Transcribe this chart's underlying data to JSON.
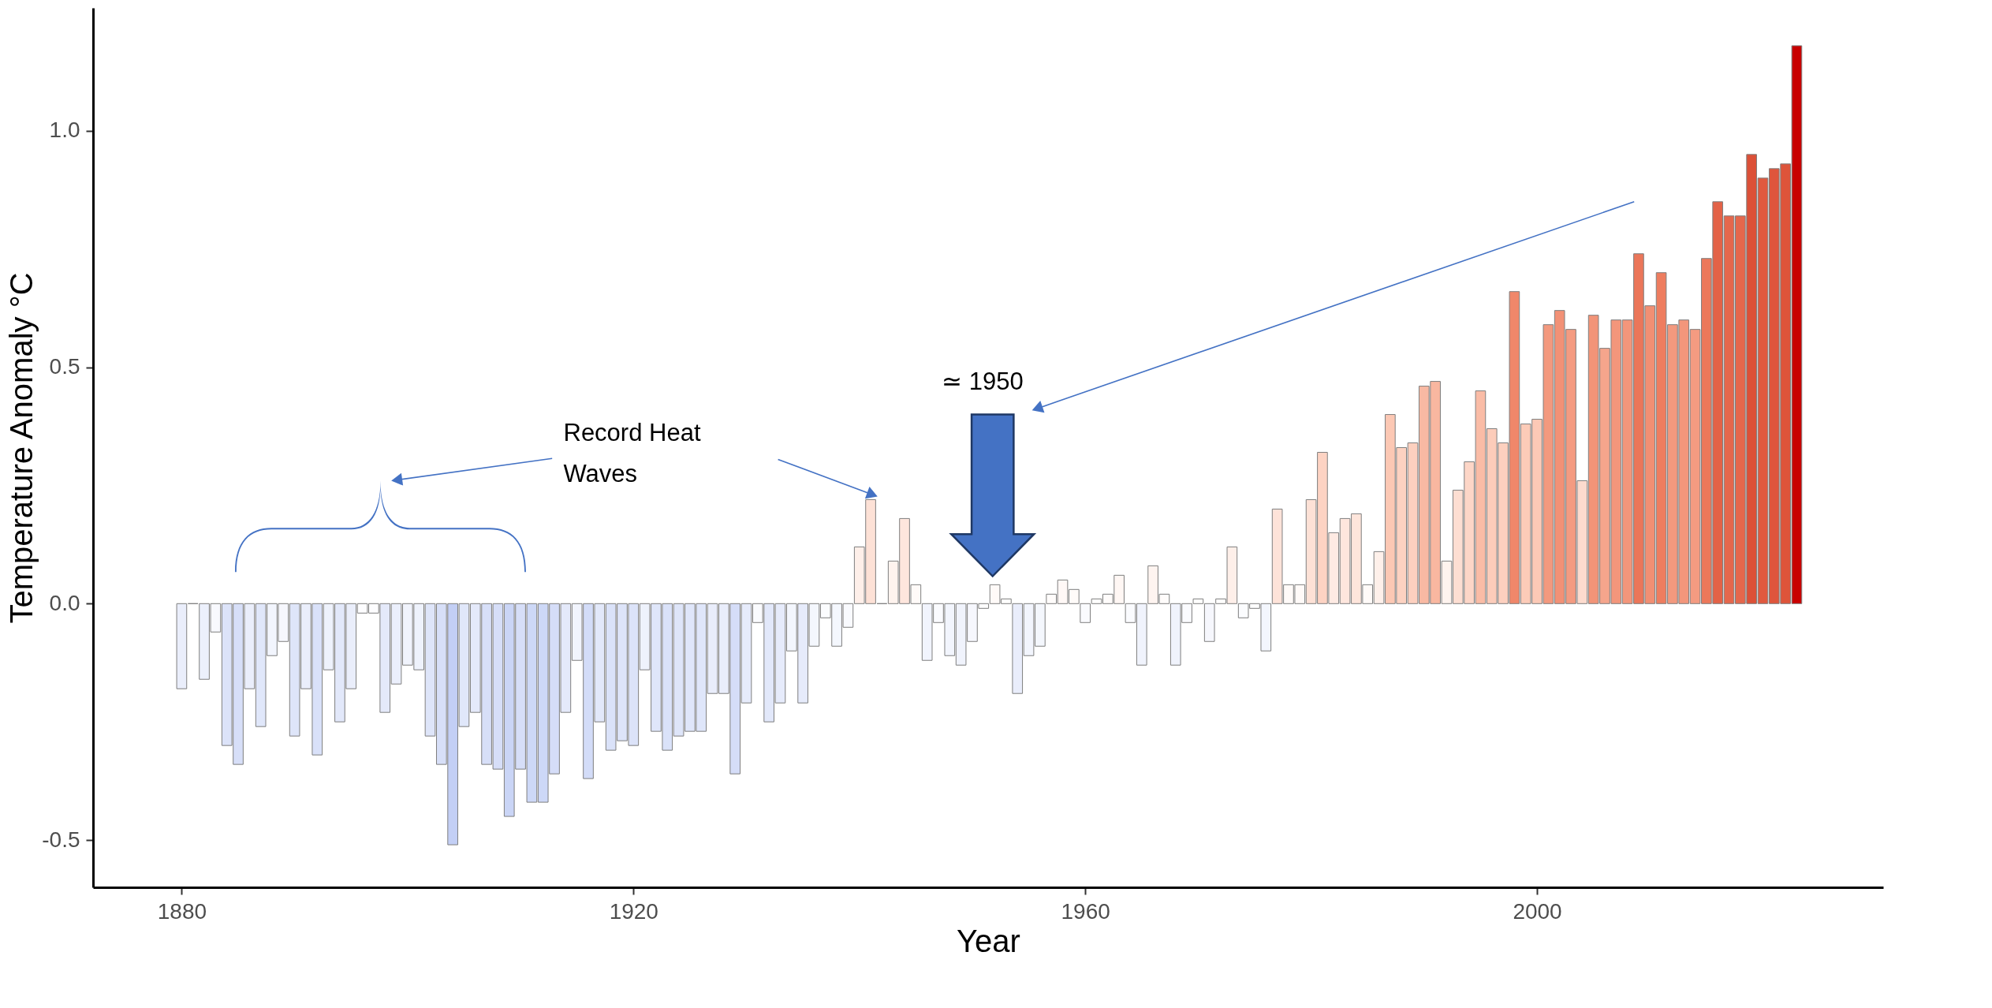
{
  "chart_data": {
    "type": "bar",
    "xlabel": "Year",
    "ylabel": "Temperature Anomaly °C",
    "x": [
      1880,
      1881,
      1882,
      1883,
      1884,
      1885,
      1886,
      1887,
      1888,
      1889,
      1890,
      1891,
      1892,
      1893,
      1894,
      1895,
      1896,
      1897,
      1898,
      1899,
      1900,
      1901,
      1902,
      1903,
      1904,
      1905,
      1906,
      1907,
      1908,
      1909,
      1910,
      1911,
      1912,
      1913,
      1914,
      1915,
      1916,
      1917,
      1918,
      1919,
      1920,
      1921,
      1922,
      1923,
      1924,
      1925,
      1926,
      1927,
      1928,
      1929,
      1930,
      1931,
      1932,
      1933,
      1934,
      1935,
      1936,
      1937,
      1938,
      1939,
      1940,
      1941,
      1942,
      1943,
      1944,
      1945,
      1946,
      1947,
      1948,
      1949,
      1950,
      1951,
      1952,
      1953,
      1954,
      1955,
      1956,
      1957,
      1958,
      1959,
      1960,
      1961,
      1962,
      1963,
      1964,
      1965,
      1966,
      1967,
      1968,
      1969,
      1970,
      1971,
      1972,
      1973,
      1974,
      1975,
      1976,
      1977,
      1978,
      1979,
      1980,
      1981,
      1982,
      1983,
      1984,
      1985,
      1986,
      1987,
      1988,
      1989,
      1990,
      1991,
      1992,
      1993,
      1994,
      1995,
      1996,
      1997,
      1998,
      1999,
      2000,
      2001,
      2002,
      2003,
      2004,
      2005,
      2006,
      2007,
      2008,
      2009,
      2010,
      2011,
      2012,
      2013,
      2014,
      2015,
      2016,
      2017,
      2018,
      2019,
      2020,
      2021,
      2022,
      2023
    ],
    "values": [
      -0.18,
      0,
      -0.16,
      -0.06,
      -0.3,
      -0.34,
      -0.18,
      -0.26,
      -0.11,
      -0.08,
      -0.28,
      -0.18,
      -0.32,
      -0.14,
      -0.25,
      -0.18,
      -0.02,
      -0.02,
      -0.23,
      -0.17,
      -0.13,
      -0.14,
      -0.28,
      -0.34,
      -0.51,
      -0.26,
      -0.23,
      -0.34,
      -0.35,
      -0.45,
      -0.35,
      -0.42,
      -0.42,
      -0.36,
      -0.23,
      -0.12,
      -0.37,
      -0.25,
      -0.31,
      -0.29,
      -0.3,
      -0.14,
      -0.27,
      -0.31,
      -0.28,
      -0.27,
      -0.27,
      -0.19,
      -0.19,
      -0.36,
      -0.21,
      -0.04,
      -0.25,
      -0.21,
      -0.1,
      -0.21,
      -0.09,
      -0.03,
      -0.09,
      -0.05,
      0.12,
      0.22,
      0,
      0.09,
      0.18,
      0.04,
      -0.12,
      -0.04,
      -0.11,
      -0.13,
      -0.08,
      -0.01,
      0.04,
      0.01,
      -0.19,
      -0.11,
      -0.09,
      0.02,
      0.05,
      0.03,
      -0.04,
      0.01,
      0.02,
      0.06,
      -0.04,
      -0.13,
      0.08,
      0.02,
      -0.13,
      -0.04,
      0.01,
      -0.08,
      0.01,
      0.12,
      -0.03,
      -0.01,
      -0.1,
      0.2,
      0.04,
      0.04,
      0.22,
      0.32,
      0.15,
      0.18,
      0.19,
      0.04,
      0.11,
      0.4,
      0.33,
      0.34,
      0.46,
      0.47,
      0.09,
      0.24,
      0.3,
      0.45,
      0.37,
      0.34,
      0.66,
      0.38,
      0.39,
      0.59,
      0.62,
      0.58,
      0.26,
      0.61,
      0.54,
      0.6,
      0.6,
      0.74,
      0.63,
      0.7,
      0.59,
      0.6,
      0.58,
      0.73,
      0.85,
      0.82,
      0.82,
      0.95,
      0.9,
      0.92,
      0.93,
      1.18
    ],
    "colors": [
      "#eaeefb",
      "#7f7f7f",
      "#ecf0fc",
      "#f8f9fe",
      "#dce3f9",
      "#d7dff8",
      "#eaeefb",
      "#e0e7fa",
      "#f2f5fd",
      "#f6f7fd",
      "#dee5f9",
      "#eaeefb",
      "#d9e1f9",
      "#eef2fc",
      "#e2e8fa",
      "#eaeefb",
      "#fdfdff",
      "#fdfdff",
      "#e4e9fa",
      "#ebeffc",
      "#f0f3fc",
      "#eef2fc",
      "#dee5f9",
      "#d7dff8",
      "#c3cff5",
      "#e0e7fa",
      "#e4e9fa",
      "#d7dff8",
      "#d6def8",
      "#cad5f6",
      "#d6def8",
      "#cdd8f7",
      "#cdd8f7",
      "#d5ddf8",
      "#e4e9fa",
      "#f1f4fd",
      "#d3dcf8",
      "#e2e8fa",
      "#dae2f9",
      "#dde4f9",
      "#dce3f9",
      "#eef2fc",
      "#dfe6fa",
      "#dae2f9",
      "#dee5f9",
      "#dfe6fa",
      "#dfe6fa",
      "#e9edfb",
      "#e9edfb",
      "#d5ddf8",
      "#e6ebfb",
      "#fafbfe",
      "#e2e8fa",
      "#e6ebfb",
      "#f3f6fd",
      "#e6ebfb",
      "#f4f7fd",
      "#fbfcfe",
      "#f4f7fd",
      "#f9fafe",
      "#feefe9",
      "#fde1d6",
      "#7f7f7f",
      "#fef3ee",
      "#fee6dd",
      "#fffaf8",
      "#f1f4fd",
      "#fafbfe",
      "#f2f5fd",
      "#f0f3fc",
      "#f6f7fd",
      "#fefeff",
      "#fffaf8",
      "#fffefd",
      "#e9edfb",
      "#f2f5fd",
      "#f4f7fd",
      "#fffcfb",
      "#fff8f6",
      "#fffbf9",
      "#fafbfe",
      "#fffefd",
      "#fffcfb",
      "#fff7f4",
      "#fafbfe",
      "#f0f3fc",
      "#fef4f0",
      "#fffcfb",
      "#f0f3fc",
      "#fafbfe",
      "#fffefd",
      "#f6f7fd",
      "#fffefd",
      "#feefe9",
      "#fbfcfe",
      "#fefeff",
      "#f3f6fd",
      "#fee3d9",
      "#fffaf8",
      "#fffaf8",
      "#fde1d6",
      "#fdd3c3",
      "#feeae3",
      "#fee6dd",
      "#fee5db",
      "#fffaf8",
      "#fef0ea",
      "#fcc8b4",
      "#fdd2c1",
      "#fdd0bf",
      "#f9b9a3",
      "#f9b7a0",
      "#fef3ee",
      "#fdded2",
      "#fdd6c7",
      "#fabca6",
      "#fcccba",
      "#fdd0bf",
      "#f0876a",
      "#fccbb8",
      "#fcc9b6",
      "#f3997e",
      "#f29176",
      "#f49b81",
      "#fddbce",
      "#f29478",
      "#f5a58c",
      "#f3967b",
      "#f3967b",
      "#eb7659",
      "#f18f73",
      "#ee7d5f",
      "#f3997e",
      "#f3967b",
      "#f49b81",
      "#ec785a",
      "#e36247",
      "#e5674c",
      "#e5674c",
      "#dc5037",
      "#e0593f",
      "#df553c",
      "#de543a",
      "#c80000"
    ],
    "xlim": [
      1872.5,
      2030.3
    ],
    "xticks": [
      1880,
      1920,
      1960,
      2000
    ],
    "ylim": [
      -0.6,
      1.26
    ],
    "yticks": [
      -0.5,
      {
        "value": 0,
        "label": "0.0"
      },
      0.5,
      {
        "value": 1,
        "label": "1.0"
      }
    ],
    "grid": false,
    "annotations": [
      "Record Heat\nWaves",
      "≃ 1950"
    ]
  }
}
